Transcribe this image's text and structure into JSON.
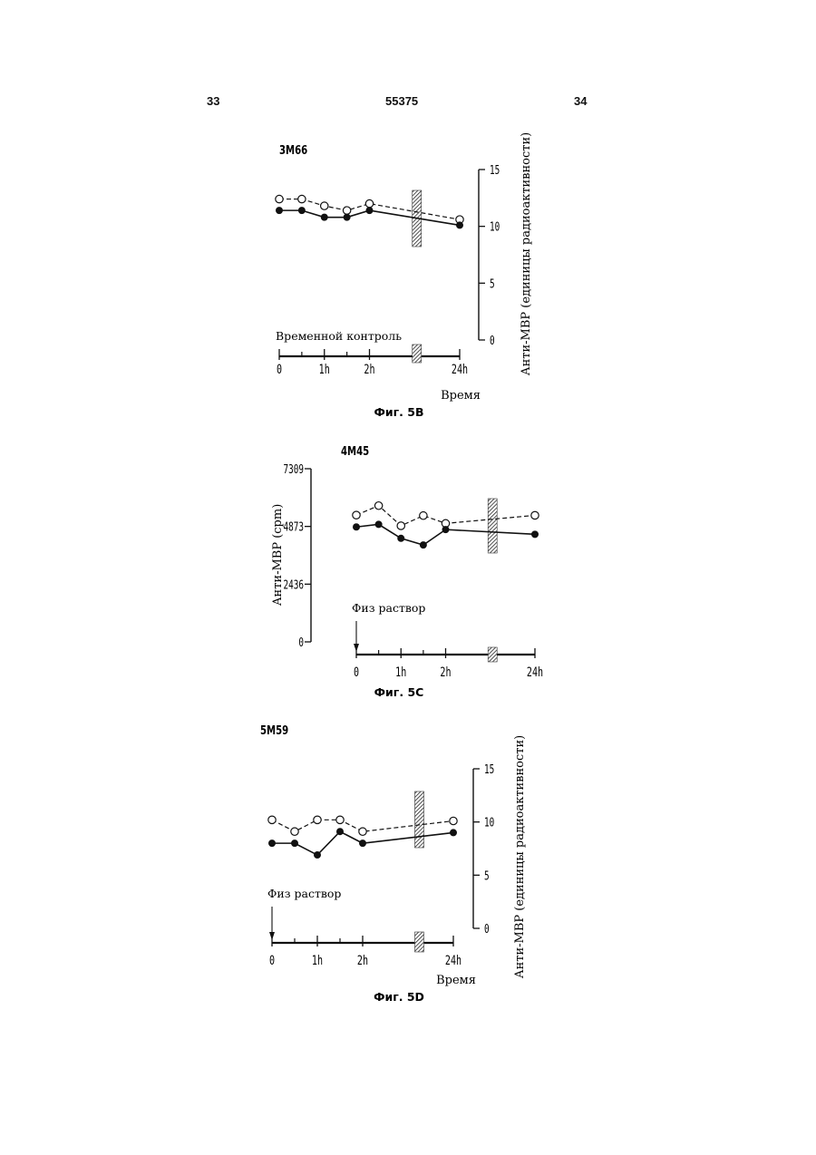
{
  "page": {
    "left_number": "33",
    "center_number": "55375",
    "right_number": "34"
  },
  "chart_data": [
    {
      "type": "line",
      "figure_label": "Фиг. 5B",
      "panel_id": "3M66",
      "ylabel": "Анти-МВР (единицы радиоактивности)",
      "xlabel": "Время",
      "y_ticks": [
        "0",
        "5",
        "10",
        "15"
      ],
      "ylim": [
        0,
        15
      ],
      "x_ticks": [
        "0",
        "1h",
        "2h",
        "24h"
      ],
      "x_tick_values": [
        0,
        1,
        2,
        4
      ],
      "xlim": [
        0,
        4
      ],
      "treatment_label": "Временной контроль",
      "break_x": 3.05,
      "series": [
        {
          "style": "dashed-open-circles",
          "x": [
            0,
            0.5,
            1,
            1.5,
            2,
            4
          ],
          "values": [
            12.4,
            12.4,
            11.8,
            11.4,
            12.0,
            10.6
          ]
        },
        {
          "style": "solid-filled-circles",
          "x": [
            0,
            0.5,
            1,
            1.5,
            2,
            4
          ],
          "values": [
            11.4,
            11.4,
            10.8,
            10.8,
            11.4,
            10.1
          ]
        }
      ]
    },
    {
      "type": "line",
      "figure_label": "Фиг. 5C",
      "panel_id": "4M45",
      "ylabel": "Анти-МВР (cpm)",
      "xlabel": "",
      "y_ticks": [
        "0",
        "2436",
        "4873",
        "7309"
      ],
      "ylim": [
        0,
        7309
      ],
      "x_ticks": [
        "0",
        "1h",
        "2h",
        "24h"
      ],
      "x_tick_values": [
        0,
        1,
        2,
        4
      ],
      "xlim": [
        0,
        4
      ],
      "treatment_label": "Физ раствор",
      "break_x": 3.05,
      "series": [
        {
          "style": "dashed-open-circles",
          "x": [
            0,
            0.5,
            1,
            1.5,
            2,
            4
          ],
          "values": [
            5350,
            5750,
            4900,
            5330,
            5000,
            5340
          ]
        },
        {
          "style": "solid-filled-circles",
          "x": [
            0,
            0.5,
            1,
            1.5,
            2,
            4
          ],
          "values": [
            4850,
            4960,
            4370,
            4090,
            4740,
            4540
          ]
        }
      ]
    },
    {
      "type": "line",
      "figure_label": "Фиг. 5D",
      "panel_id": "5M59",
      "ylabel": "Анти-МВР (единицы радиоактивности)",
      "xlabel": "Время",
      "y_ticks": [
        "0",
        "5",
        "10",
        "15"
      ],
      "ylim": [
        0,
        15
      ],
      "x_ticks": [
        "0",
        "1h",
        "2h",
        "24h"
      ],
      "x_tick_values": [
        0,
        1,
        2,
        4
      ],
      "xlim": [
        0,
        4
      ],
      "treatment_label": "Физ раствор",
      "break_x": 3.25,
      "series": [
        {
          "style": "dashed-open-circles",
          "x": [
            0,
            0.5,
            1,
            1.5,
            2,
            4
          ],
          "values": [
            10.2,
            9.1,
            10.2,
            10.2,
            9.1,
            10.1
          ]
        },
        {
          "style": "solid-filled-circles",
          "x": [
            0,
            0.5,
            1,
            1.5,
            2,
            4
          ],
          "values": [
            8.0,
            8.0,
            6.9,
            9.1,
            8.0,
            9.0
          ]
        }
      ]
    }
  ]
}
